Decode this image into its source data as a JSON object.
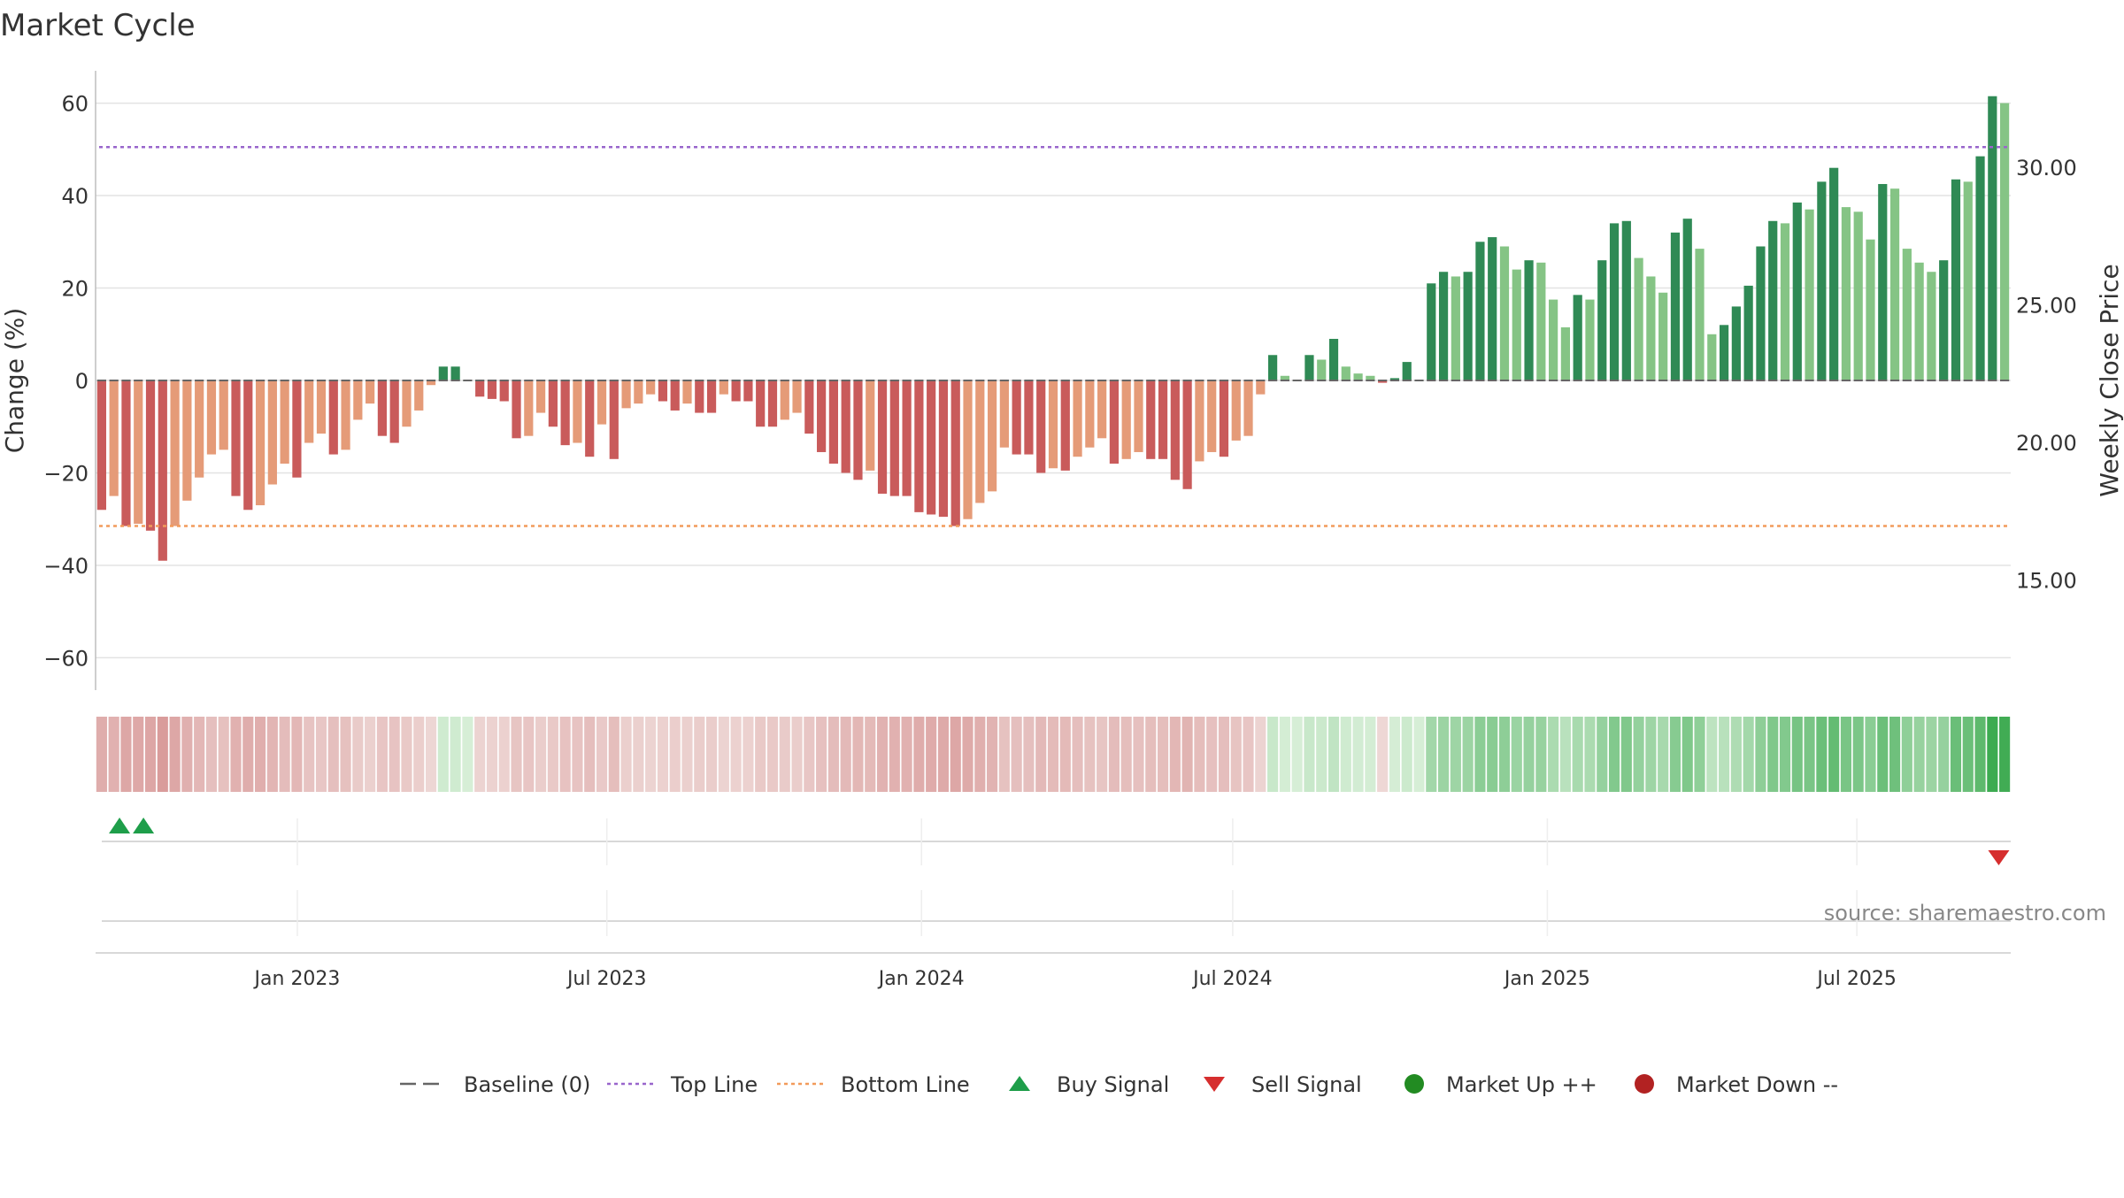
{
  "chart_data": {
    "type": "bar",
    "title": "Market Cycle",
    "ylabel_left": "Change (%)",
    "ylabel_right": "Weekly Close Price",
    "ylim": [
      -67,
      67
    ],
    "yticks": [
      60,
      40,
      20,
      0,
      -20,
      -40,
      -60
    ],
    "ytick_labels": [
      "60",
      "40",
      "20",
      "0",
      "−20",
      "−40",
      "−60"
    ],
    "right_ticks": [
      30,
      25,
      20,
      15
    ],
    "right_tick_labels": [
      "30.00",
      "25.00",
      "20.00",
      "15.00"
    ],
    "top_line": 50.5,
    "bottom_line": -31.5,
    "grid": true,
    "x_start": "2022-09-05",
    "x_end": "2025-09-29",
    "xtick_dates": [
      "2023-01-01",
      "2023-07-01",
      "2024-01-01",
      "2024-07-01",
      "2025-01-01",
      "2025-07-01"
    ],
    "xtick_labels": [
      "Jan 2023",
      "Jul 2023",
      "Jan 2024",
      "Jul 2024",
      "Jan 2025",
      "Jul 2025"
    ],
    "week_start": "2022-09-05",
    "values": [
      -28,
      -25,
      -31.5,
      -31,
      -32.5,
      -39,
      -31.5,
      -26,
      -21,
      -16,
      -15,
      -25,
      -28,
      -27,
      -22.5,
      -18,
      -21,
      -13.5,
      -11.5,
      -16,
      -15,
      -8.5,
      -5,
      -12,
      -13.5,
      -10,
      -6.5,
      -1,
      3,
      3,
      0,
      -3.5,
      -4,
      -4.5,
      -12.5,
      -12,
      -7,
      -10,
      -14,
      -13.5,
      -16.5,
      -9.5,
      -17,
      -6,
      -5,
      -3,
      -4.5,
      -6.5,
      -5,
      -7,
      -7,
      -3,
      -4.5,
      -4.5,
      -10,
      -10,
      -8.5,
      -7,
      -11.5,
      -15.5,
      -18,
      -20,
      -21.5,
      -19.5,
      -24.5,
      -25,
      -25,
      -28.5,
      -29,
      -29.5,
      -31.5,
      -30,
      -26.5,
      -24,
      -14.5,
      -16,
      -16,
      -20,
      -19,
      -19.5,
      -16.5,
      -14.5,
      -12.5,
      -18,
      -17,
      -15.5,
      -17,
      -17,
      -21.5,
      -23.5,
      -17.5,
      -15.5,
      -16.5,
      -13,
      -12,
      -3,
      5.5,
      1,
      0,
      5.5,
      4.5,
      9,
      3,
      1.5,
      1,
      -0.5,
      0.5,
      4,
      0,
      21,
      23.5,
      22.5,
      23.5,
      30,
      31,
      29,
      24,
      26,
      25.5,
      17.5,
      11.5,
      18.5,
      17.5,
      26,
      34,
      34.5,
      26.5,
      22.5,
      19,
      32,
      35,
      28.5,
      10,
      12,
      16,
      20.5,
      29,
      34.5,
      34,
      38.5,
      37,
      43,
      46,
      37.5,
      36.5,
      30.5,
      42.5,
      41.5,
      28.5,
      25.5,
      23.5,
      26,
      43.5,
      43,
      48.5,
      61.5,
      60
    ],
    "bar_shades": {
      "strong_negative": "#c95b5b",
      "weak_negative": "#e59b78",
      "strong_positive": "#2f8a55",
      "weak_positive": "#85c485"
    },
    "top_line_color": "#9966cc",
    "bottom_line_color": "#f29b5b",
    "baseline_color": "#666666",
    "buy_signals": [
      "2022-09-19",
      "2022-10-03"
    ],
    "sell_signals": [
      "2025-09-22"
    ],
    "buy_color": "#1e9e4a",
    "sell_color": "#d62e2e",
    "legend_position": "bottom",
    "legend": [
      {
        "label": "Baseline (0)",
        "kind": "baseline-dash",
        "color": "#666666"
      },
      {
        "label": "Top Line",
        "kind": "dotted-line",
        "color": "#9966cc"
      },
      {
        "label": "Bottom Line",
        "kind": "dotted-line",
        "color": "#f29b5b"
      },
      {
        "label": "Buy Signal",
        "kind": "triangle-up",
        "color": "#1e9e4a"
      },
      {
        "label": "Sell Signal",
        "kind": "triangle-down",
        "color": "#d62e2e"
      },
      {
        "label": "Market Up ++",
        "kind": "dot",
        "color": "#228b22"
      },
      {
        "label": "Market Down --",
        "kind": "dot",
        "color": "#b22222"
      }
    ],
    "source_text": "source: sharemaestro.com"
  }
}
